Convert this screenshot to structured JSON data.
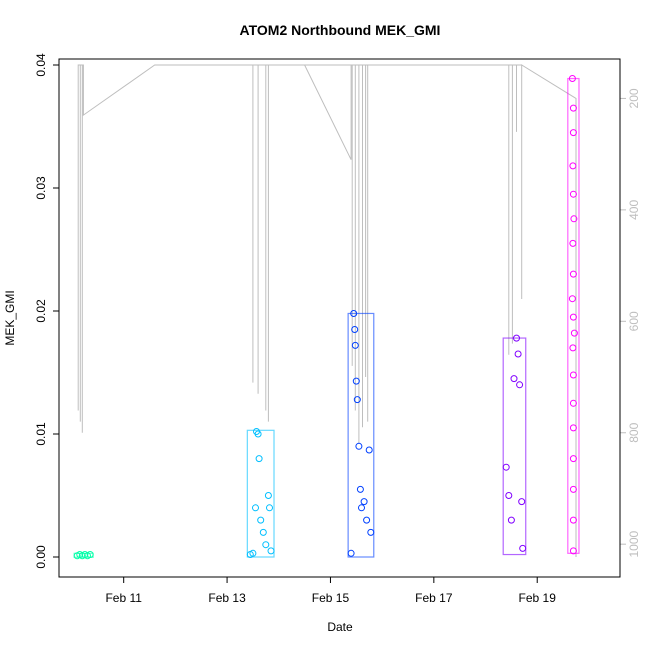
{
  "chart_data": {
    "type": "scatter",
    "title": "ATOM2 Northbound MEK_GMI",
    "xlabel": "Date",
    "ylabel": "MEK_GMI",
    "x_ticks": [
      "Feb 11",
      "Feb 13",
      "Feb 15",
      "Feb 17",
      "Feb 19"
    ],
    "x_tick_days": [
      11,
      13,
      15,
      17,
      19
    ],
    "xlim": [
      10.0,
      20.35
    ],
    "ylim": [
      0.0,
      0.04
    ],
    "y_ticks": [
      0.0,
      0.01,
      0.02,
      0.03,
      0.04
    ],
    "y_tick_labels": [
      "0.00",
      "0.01",
      "0.02",
      "0.03",
      "0.04"
    ],
    "right_axis": {
      "ticks": [
        200,
        400,
        600,
        800,
        1000
      ],
      "tick_labels": [
        "200",
        "400",
        "600",
        "800",
        "1000"
      ],
      "range_top_to_bottom": [
        140,
        1023
      ],
      "color": "#bebebe"
    },
    "grid": false,
    "legend": "none",
    "series": [
      {
        "color": "#00ffa8",
        "x_range": [
          10.1,
          10.35
        ],
        "y_range": [
          0.0,
          0.0003
        ],
        "points": [
          [
            10.1,
            0.0001
          ],
          [
            10.15,
            0.0002
          ],
          [
            10.2,
            0.0001
          ],
          [
            10.25,
            0.0002
          ],
          [
            10.3,
            0.0001
          ],
          [
            10.35,
            0.0002
          ]
        ]
      },
      {
        "color": "#00bfff",
        "x_range": [
          13.45,
          13.85
        ],
        "y_range": [
          0.0,
          0.0103
        ],
        "points": [
          [
            13.45,
            0.0002
          ],
          [
            13.5,
            0.0003
          ],
          [
            13.55,
            0.004
          ],
          [
            13.57,
            0.0102
          ],
          [
            13.6,
            0.01
          ],
          [
            13.62,
            0.008
          ],
          [
            13.65,
            0.003
          ],
          [
            13.7,
            0.002
          ],
          [
            13.75,
            0.001
          ],
          [
            13.8,
            0.005
          ],
          [
            13.82,
            0.004
          ],
          [
            13.85,
            0.0005
          ]
        ]
      },
      {
        "color": "#0040ff",
        "x_range": [
          15.4,
          15.78
        ],
        "y_range": [
          0.0,
          0.0198
        ],
        "points": [
          [
            15.4,
            0.0003
          ],
          [
            15.45,
            0.0198
          ],
          [
            15.47,
            0.0185
          ],
          [
            15.48,
            0.0172
          ],
          [
            15.5,
            0.0143
          ],
          [
            15.52,
            0.0128
          ],
          [
            15.55,
            0.009
          ],
          [
            15.58,
            0.0055
          ],
          [
            15.6,
            0.004
          ],
          [
            15.65,
            0.0045
          ],
          [
            15.7,
            0.003
          ],
          [
            15.75,
            0.0087
          ],
          [
            15.78,
            0.002
          ]
        ]
      },
      {
        "color": "#8000ff",
        "x_range": [
          18.4,
          18.72
        ],
        "y_range": [
          0.0002,
          0.0178
        ],
        "points": [
          [
            18.4,
            0.0073
          ],
          [
            18.45,
            0.005
          ],
          [
            18.5,
            0.003
          ],
          [
            18.55,
            0.0145
          ],
          [
            18.6,
            0.0178
          ],
          [
            18.63,
            0.0165
          ],
          [
            18.66,
            0.014
          ],
          [
            18.7,
            0.0045
          ],
          [
            18.72,
            0.0007
          ]
        ]
      },
      {
        "color": "#ff00ff",
        "x_range": [
          19.65,
          19.75
        ],
        "y_range": [
          0.0003,
          0.0389
        ],
        "points": [
          [
            19.68,
            0.0389
          ],
          [
            19.7,
            0.0365
          ],
          [
            19.7,
            0.0345
          ],
          [
            19.69,
            0.0318
          ],
          [
            19.7,
            0.0295
          ],
          [
            19.71,
            0.0275
          ],
          [
            19.69,
            0.0255
          ],
          [
            19.7,
            0.023
          ],
          [
            19.68,
            0.021
          ],
          [
            19.7,
            0.0195
          ],
          [
            19.72,
            0.0182
          ],
          [
            19.69,
            0.017
          ],
          [
            19.7,
            0.0148
          ],
          [
            19.7,
            0.0125
          ],
          [
            19.7,
            0.0105
          ],
          [
            19.7,
            0.008
          ],
          [
            19.7,
            0.0055
          ],
          [
            19.7,
            0.003
          ],
          [
            19.7,
            0.0005
          ]
        ]
      }
    ],
    "pressure_trace": {
      "color": "#bebebe",
      "axis": "right",
      "path": [
        [
          10.12,
          140
        ],
        [
          10.12,
          760
        ],
        [
          10.12,
          140
        ],
        [
          10.16,
          140
        ],
        [
          10.16,
          780
        ],
        [
          10.16,
          140
        ],
        [
          10.2,
          140
        ],
        [
          10.2,
          800
        ],
        [
          10.2,
          140
        ],
        [
          10.22,
          140
        ],
        [
          10.22,
          230
        ],
        [
          11.6,
          140
        ],
        [
          14.5,
          140
        ],
        [
          15.4,
          310
        ],
        [
          15.4,
          140
        ],
        [
          13.5,
          140
        ],
        [
          13.5,
          710
        ],
        [
          13.5,
          140
        ],
        [
          13.6,
          140
        ],
        [
          13.6,
          730
        ],
        [
          13.6,
          140
        ],
        [
          13.75,
          140
        ],
        [
          13.75,
          760
        ],
        [
          13.75,
          140
        ],
        [
          13.8,
          140
        ],
        [
          13.8,
          780
        ],
        [
          13.8,
          140
        ],
        [
          15.42,
          140
        ],
        [
          15.42,
          680
        ],
        [
          15.42,
          140
        ],
        [
          15.48,
          140
        ],
        [
          15.48,
          760
        ],
        [
          15.48,
          140
        ],
        [
          15.55,
          140
        ],
        [
          15.55,
          820
        ],
        [
          15.55,
          140
        ],
        [
          15.62,
          140
        ],
        [
          15.62,
          790
        ],
        [
          15.62,
          140
        ],
        [
          15.68,
          140
        ],
        [
          15.68,
          700
        ],
        [
          15.68,
          140
        ],
        [
          15.72,
          140
        ],
        [
          15.72,
          780
        ],
        [
          15.72,
          140
        ],
        [
          18.45,
          140
        ],
        [
          18.45,
          660
        ],
        [
          18.45,
          140
        ],
        [
          18.52,
          140
        ],
        [
          18.52,
          640
        ],
        [
          18.52,
          140
        ],
        [
          18.6,
          140
        ],
        [
          18.6,
          260
        ],
        [
          18.6,
          140
        ],
        [
          18.7,
          140
        ],
        [
          18.7,
          560
        ],
        [
          18.7,
          140
        ],
        [
          19.75,
          200
        ],
        [
          19.75,
          1023
        ]
      ]
    }
  }
}
